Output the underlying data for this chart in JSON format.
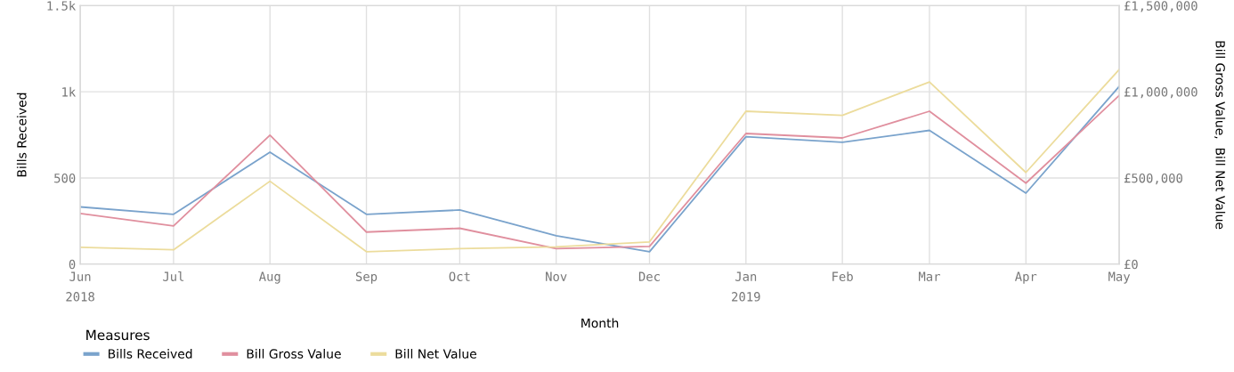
{
  "chart_data": {
    "type": "line",
    "xlabel": "Month",
    "ylabel": "Bills Received",
    "y2label": "Bill Gross Value,  Bill Net Value",
    "legend_title": "Measures",
    "x": [
      "2018-06-01",
      "2018-07-01",
      "2018-08-01",
      "2018-09-01",
      "2018-10-01",
      "2018-11-01",
      "2018-12-01",
      "2019-01-01",
      "2019-02-01",
      "2019-03-01",
      "2019-04-01",
      "2019-05-01"
    ],
    "series": [
      {
        "name": "Bills Received",
        "color": "#7aa3cc",
        "values": [
          332,
          289,
          650,
          289,
          314,
          165,
          72,
          739,
          707,
          776,
          412,
          1031
        ]
      },
      {
        "name": "Bill Gross Value",
        "color": "#e08f9e",
        "axis": "y2",
        "values": [
          294000,
          222000,
          748000,
          186000,
          208000,
          90000,
          103000,
          758000,
          732000,
          887000,
          470000,
          979000
        ]
      },
      {
        "name": "Bill Net Value",
        "color": "#ecdc9c",
        "axis": "y2",
        "values": [
          98000,
          83000,
          481000,
          72000,
          90000,
          100000,
          129000,
          887000,
          863000,
          1057000,
          532000,
          1129000
        ]
      }
    ],
    "xlim": [
      "2018-06-01",
      "2019-05-01"
    ],
    "xticks": [
      {
        "value": "2018-06-01",
        "label": "Jun"
      },
      {
        "value": "2018-07-01",
        "label": "Jul"
      },
      {
        "value": "2018-08-01",
        "label": "Aug"
      },
      {
        "value": "2018-09-01",
        "label": "Sep"
      },
      {
        "value": "2018-10-01",
        "label": "Oct"
      },
      {
        "value": "2018-11-01",
        "label": "Nov"
      },
      {
        "value": "2018-12-01",
        "label": "Dec"
      },
      {
        "value": "2019-01-01",
        "label": "Jan"
      },
      {
        "value": "2019-02-01",
        "label": "Feb"
      },
      {
        "value": "2019-03-01",
        "label": "Mar"
      },
      {
        "value": "2019-04-01",
        "label": "Apr"
      },
      {
        "value": "2019-05-01",
        "label": "May"
      }
    ],
    "x2lim": [
      "2018-06-01",
      "2019-05-01"
    ],
    "x2ticks": [
      {
        "value": "2018-06-01",
        "label": "2018"
      },
      {
        "value": "2019-01-01",
        "label": "2019"
      }
    ],
    "ylim": [
      0,
      1500
    ],
    "yticks": [
      {
        "value": 0,
        "label": "0"
      },
      {
        "value": 500,
        "label": "500"
      },
      {
        "value": 1000,
        "label": "1k"
      },
      {
        "value": 1500,
        "label": "1.5k"
      }
    ],
    "y2lim": [
      0,
      1500000
    ],
    "y2ticks": [
      {
        "value": 0,
        "label": "£0"
      },
      {
        "value": 500000,
        "label": "£500,000"
      },
      {
        "value": 1000000,
        "label": "£1,000,000"
      },
      {
        "value": 1500000,
        "label": "£1,500,000"
      }
    ],
    "grid": true,
    "legend": "bottom",
    "marker": "none",
    "line_style": "solid"
  }
}
